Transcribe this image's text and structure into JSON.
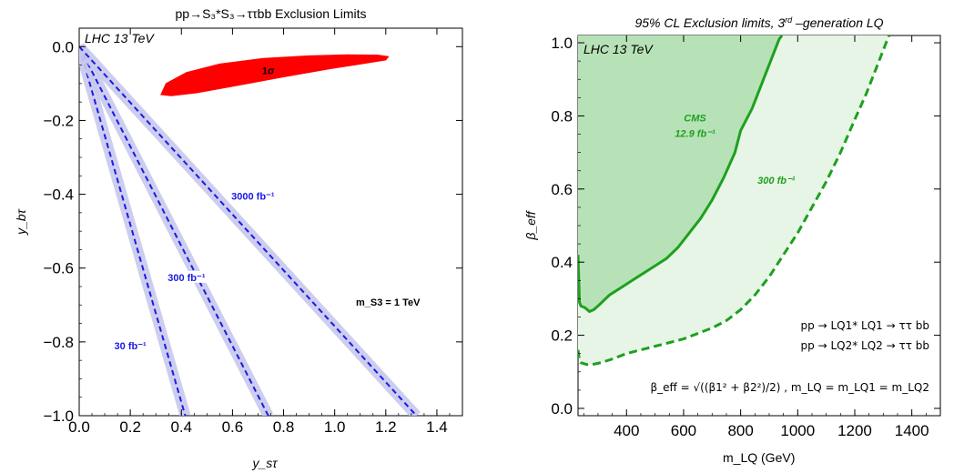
{
  "chart_data": [
    {
      "type": "line",
      "title": "pp→S₃*S₃→ττbb Exclusion Limits",
      "xlabel": "y_sτ",
      "ylabel": "y_bτ",
      "xlim": [
        0,
        1.5
      ],
      "ylim": [
        -1.0,
        0.05
      ],
      "xticks": [
        "0.0",
        "0.2",
        "0.4",
        "0.6",
        "0.8",
        "1.0",
        "1.2",
        "1.4"
      ],
      "yticks": [
        "0.0",
        "−0.2",
        "−0.4",
        "−0.6",
        "−0.8",
        "−1.0"
      ],
      "xtick_values": [
        0,
        0.2,
        0.4,
        0.6,
        0.8,
        1.0,
        1.2,
        1.4
      ],
      "ytick_values": [
        0,
        -0.2,
        -0.4,
        -0.6,
        -0.8,
        -1.0
      ],
      "grid": false,
      "corner_label": "LHC 13 TeV",
      "mass_label": "m_S3 = 1 TeV",
      "series": [
        {
          "name": "30 fb⁻¹",
          "color": "#1a1ae6",
          "band": "#c8c8ee",
          "x": [
            0.0,
            0.415
          ],
          "y": [
            0.0,
            -1.0
          ],
          "label_at": [
            0.2,
            -0.815
          ]
        },
        {
          "name": "300 fb⁻¹",
          "color": "#1a1ae6",
          "band": "#c8c8ee",
          "x": [
            0.0,
            0.74
          ],
          "y": [
            0.0,
            -1.0
          ],
          "label_at": [
            0.42,
            -0.63
          ]
        },
        {
          "name": "3000 fb⁻¹",
          "color": "#1a1ae6",
          "band": "#c8c8ee",
          "x": [
            0.0,
            1.32
          ],
          "y": [
            0.0,
            -1.0
          ],
          "label_at": [
            0.68,
            -0.41
          ]
        }
      ],
      "region_1sigma": {
        "label": "1σ",
        "color": "#ff0000",
        "outline_x": [
          0.32,
          0.36,
          0.46,
          0.62,
          0.8,
          0.98,
          1.12,
          1.2,
          1.21,
          1.17,
          1.05,
          0.9,
          0.72,
          0.55,
          0.42,
          0.34,
          0.32
        ],
        "outline_y": [
          -0.13,
          -0.133,
          -0.125,
          -0.105,
          -0.082,
          -0.06,
          -0.045,
          -0.036,
          -0.027,
          -0.023,
          -0.022,
          -0.025,
          -0.032,
          -0.047,
          -0.07,
          -0.1,
          -0.13
        ],
        "label_at": [
          0.74,
          -0.065
        ]
      }
    },
    {
      "type": "area",
      "title": "95% CL Exclusion limits, 3rd–generation LQ",
      "title_parts": [
        "95% CL Exclusion limits, 3",
        "rd",
        " –generation LQ"
      ],
      "xlabel": "m_LQ (GeV)",
      "ylabel": "β_eff",
      "xlim": [
        230,
        1500
      ],
      "ylim": [
        -0.02,
        1.02
      ],
      "xticks": [
        "400",
        "600",
        "800",
        "1000",
        "1200",
        "1400"
      ],
      "yticks": [
        "0.0",
        "0.2",
        "0.4",
        "0.6",
        "0.8",
        "1.0"
      ],
      "xtick_values": [
        400,
        600,
        800,
        1000,
        1200,
        1400
      ],
      "ytick_values": [
        0,
        0.2,
        0.4,
        0.6,
        0.8,
        1.0
      ],
      "grid": false,
      "corner_label": "LHC 13 TeV",
      "series": [
        {
          "name": "CMS 12.9 fb⁻¹",
          "name_lines": [
            "CMS",
            "12.9 fb⁻¹"
          ],
          "color": "#1ea01e",
          "fill": "#b7e2b7",
          "style": "solid",
          "x": [
            230,
            235,
            240,
            255,
            270,
            285,
            300,
            340,
            380,
            420,
            460,
            500,
            540,
            580,
            620,
            660,
            700,
            740,
            780,
            800,
            820,
            840,
            860,
            880,
            900,
            920,
            935,
            945
          ],
          "y": [
            0.42,
            0.29,
            0.28,
            0.275,
            0.265,
            0.27,
            0.28,
            0.31,
            0.33,
            0.35,
            0.37,
            0.39,
            0.41,
            0.44,
            0.48,
            0.52,
            0.57,
            0.63,
            0.7,
            0.76,
            0.79,
            0.82,
            0.86,
            0.9,
            0.94,
            0.98,
            1.01,
            1.02
          ],
          "label_at": [
            640,
            0.785
          ]
        },
        {
          "name": "300 fb⁻¹",
          "color": "#1ea01e",
          "fill": "#e6f5e6",
          "style": "dashed",
          "x": [
            230,
            235,
            240,
            260,
            280,
            310,
            350,
            400,
            450,
            500,
            550,
            600,
            650,
            700,
            750,
            800,
            850,
            900,
            950,
            1000,
            1050,
            1100,
            1150,
            1200,
            1240,
            1270,
            1300,
            1320
          ],
          "y": [
            0.16,
            0.13,
            0.125,
            0.12,
            0.12,
            0.125,
            0.135,
            0.15,
            0.16,
            0.17,
            0.18,
            0.19,
            0.205,
            0.22,
            0.24,
            0.27,
            0.31,
            0.36,
            0.42,
            0.48,
            0.55,
            0.62,
            0.7,
            0.79,
            0.86,
            0.92,
            0.98,
            1.02
          ],
          "label_at": [
            925,
            0.615
          ]
        }
      ],
      "legend": [
        "pp → LQ1* LQ1 → ττ bb",
        "pp → LQ2* LQ2 → ττ bb"
      ],
      "formula": "β_eff = √((β1² + β2²)/2) ,   m_LQ = m_LQ1 = m_LQ2"
    }
  ]
}
